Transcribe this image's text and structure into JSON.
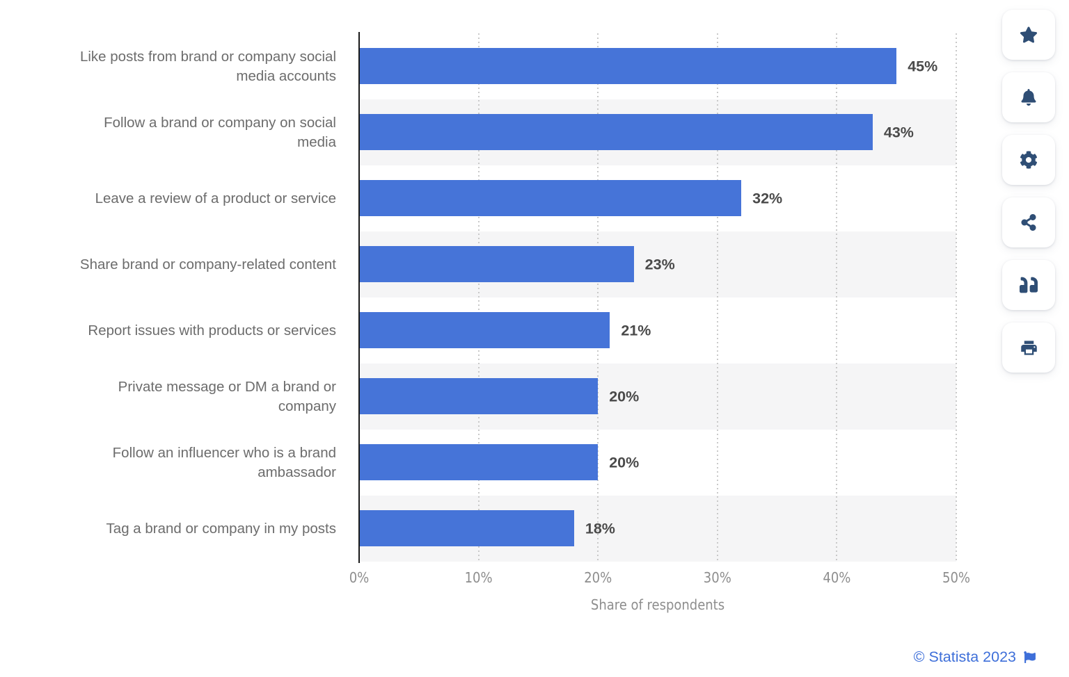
{
  "chart_data": {
    "type": "bar",
    "orientation": "horizontal",
    "categories": [
      "Like posts from brand or company social\nmedia accounts",
      "Follow a brand or company on social\nmedia",
      "Leave a review of a product or service",
      "Share brand or company-related content",
      "Report issues with products or services",
      "Private message or DM a brand or\ncompany",
      "Follow an influencer who is a brand\nambassador",
      "Tag a brand or company in my posts"
    ],
    "values": [
      45,
      43,
      32,
      23,
      21,
      20,
      20,
      18
    ],
    "value_labels": [
      "45%",
      "43%",
      "32%",
      "23%",
      "21%",
      "20%",
      "20%",
      "18%"
    ],
    "xlabel": "Share of respondents",
    "x_ticks": [
      "0%",
      "10%",
      "20%",
      "30%",
      "40%",
      "50%"
    ],
    "xlim": [
      0,
      50
    ],
    "grid": "vertical-dotted",
    "legend_position": "none",
    "bar_color": "#4674d8",
    "row_stripe_color": "#f5f5f6"
  },
  "toolbar": {
    "buttons": [
      {
        "icon": "star-icon"
      },
      {
        "icon": "bell-icon"
      },
      {
        "icon": "gear-icon"
      },
      {
        "icon": "share-icon"
      },
      {
        "icon": "quote-icon"
      },
      {
        "icon": "printer-icon"
      }
    ]
  },
  "footer": {
    "copyright": "© Statista 2023",
    "flag": "flag-icon"
  },
  "colors": {
    "accent_blue": "#4674d8",
    "icon_navy": "#2f4e75",
    "footer_blue": "#3e6fd9",
    "stripe_gray": "#f5f5f6",
    "axis_black": "#1a1a1a"
  }
}
